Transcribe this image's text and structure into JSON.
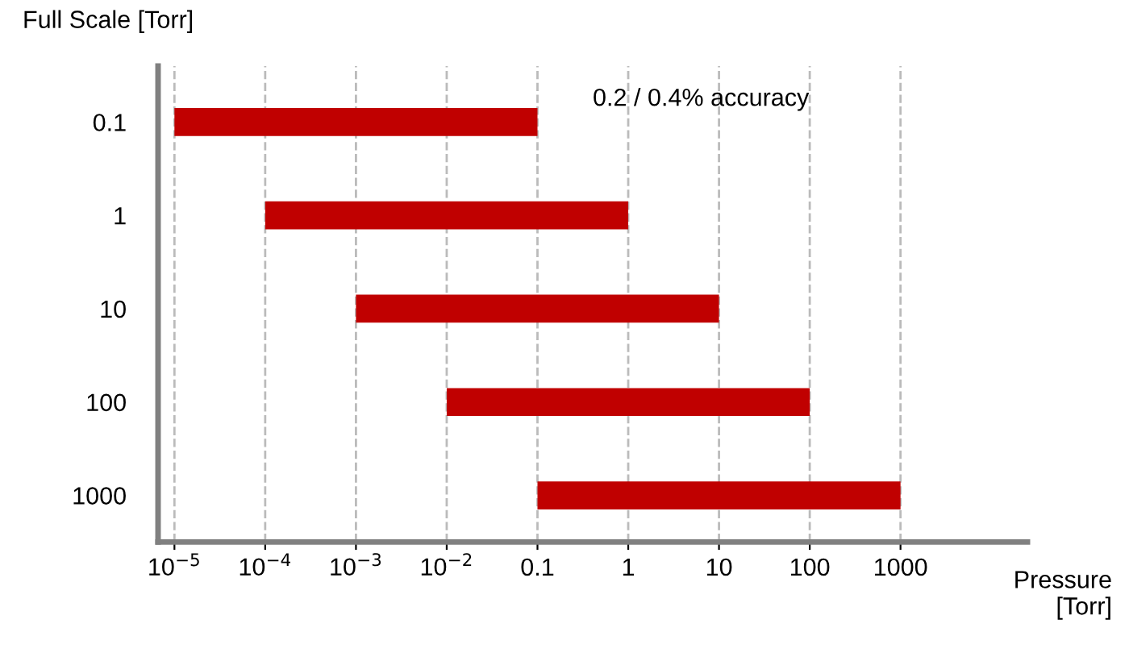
{
  "chart_data": {
    "type": "bar",
    "orientation": "horizontal",
    "ylabel": "Full Scale [Torr]",
    "xlabel": "Pressure [Torr]",
    "categories": [
      "0.1",
      "1",
      "10",
      "100",
      "1000"
    ],
    "base": [
      1e-05,
      0.0001,
      0.001,
      0.01,
      0.1
    ],
    "values": [
      0.09999,
      0.9999,
      9.999,
      99.99,
      999.9
    ],
    "color": "#c00000",
    "log": "x",
    "xlim": [
      6.6e-06,
      25000
    ],
    "xticks": [
      {
        "value": 1e-05,
        "label": "10$^{−5}$"
      },
      {
        "value": 0.0001,
        "label": "10$^{−4}$"
      },
      {
        "value": 0.001,
        "label": "10$^{−3}$"
      },
      {
        "value": 0.01,
        "label": "10$^{−2}$"
      },
      0.1,
      1,
      10,
      100,
      1000
    ],
    "grid": "x",
    "annotations": [
      "0.2 / 0.4% accuracy"
    ]
  }
}
